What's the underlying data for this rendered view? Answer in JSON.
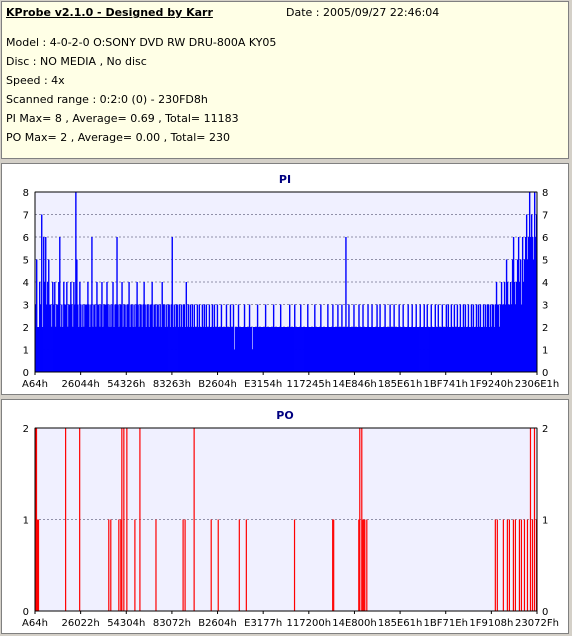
{
  "header": {
    "title": "KProbe v2.1.0 - Designed by Karr",
    "date": "Date : 2005/09/27 22:46:04",
    "lines": [
      "Model : 4-0-2-0 O:SONY    DVD RW DRU-800A  KY05",
      "Disc : NO MEDIA , No disc",
      "Speed : 4x",
      "Scanned range : 0:2:0 (0) - 230FD8h",
      "PI Max= 8 , Average= 0.69 , Total= 11183",
      "PO Max= 2 , Average= 0.00 , Total= 230"
    ]
  },
  "chart_data": [
    {
      "type": "bar",
      "title": "PI",
      "ylim": [
        0,
        8
      ],
      "yticks": [
        0,
        1,
        2,
        3,
        4,
        5,
        6,
        7,
        8
      ],
      "xtick_labels": [
        "A64h",
        "26044h",
        "54326h",
        "83263h",
        "B2604h",
        "E3154h",
        "117245h",
        "14E846h",
        "185E61h",
        "1BF741h",
        "1F9240h",
        "2306E1h"
      ],
      "color": "#0000ff",
      "x_range": [
        0,
        500
      ],
      "values": [
        3,
        5,
        2,
        2,
        4,
        3,
        7,
        2,
        6,
        4,
        6,
        3,
        4,
        5,
        3,
        3,
        2,
        4,
        3,
        4,
        2,
        3,
        3,
        4,
        6,
        2,
        3,
        2,
        4,
        3,
        3,
        4,
        2,
        3,
        3,
        4,
        3,
        2,
        4,
        3,
        8,
        5,
        3,
        2,
        4,
        3,
        2,
        3,
        2,
        3,
        3,
        3,
        4,
        3,
        2,
        3,
        6,
        2,
        3,
        3,
        2,
        4,
        3,
        3,
        2,
        3,
        4,
        2,
        3,
        3,
        3,
        4,
        3,
        2,
        3,
        2,
        3,
        4,
        2,
        3,
        3,
        6,
        3,
        2,
        3,
        3,
        4,
        2,
        3,
        3,
        2,
        3,
        3,
        4,
        2,
        3,
        3,
        2,
        3,
        2,
        3,
        4,
        3,
        2,
        3,
        3,
        2,
        3,
        4,
        3,
        2,
        3,
        3,
        2,
        3,
        3,
        4,
        2,
        3,
        3,
        2,
        3,
        3,
        2,
        3,
        2,
        4,
        3,
        3,
        2,
        3,
        2,
        3,
        3,
        2,
        3,
        6,
        2,
        3,
        2,
        3,
        3,
        2,
        3,
        2,
        3,
        2,
        3,
        3,
        2,
        4,
        2,
        3,
        2,
        3,
        2,
        3,
        2,
        3,
        2,
        2,
        3,
        2,
        3,
        2,
        2,
        3,
        2,
        3,
        2,
        3,
        2,
        2,
        3,
        2,
        2,
        3,
        2,
        3,
        2,
        2,
        3,
        2,
        2,
        2,
        3,
        2,
        2,
        2,
        2,
        3,
        2,
        2,
        2,
        3,
        2,
        2,
        3,
        1,
        2,
        2,
        2,
        3,
        2,
        2,
        2,
        2,
        2,
        3,
        2,
        2,
        2,
        2,
        3,
        2,
        2,
        1,
        2,
        2,
        2,
        2,
        3,
        2,
        2,
        2,
        2,
        2,
        2,
        2,
        3,
        2,
        2,
        2,
        2,
        2,
        2,
        2,
        3,
        2,
        2,
        2,
        2,
        2,
        2,
        3,
        2,
        2,
        2,
        2,
        2,
        2,
        2,
        2,
        3,
        2,
        2,
        2,
        2,
        3,
        2,
        2,
        2,
        2,
        2,
        3,
        2,
        2,
        2,
        2,
        2,
        2,
        3,
        2,
        2,
        2,
        2,
        2,
        2,
        3,
        2,
        2,
        2,
        2,
        2,
        3,
        2,
        2,
        2,
        2,
        2,
        2,
        3,
        2,
        2,
        2,
        2,
        3,
        2,
        2,
        2,
        2,
        3,
        2,
        2,
        2,
        3,
        2,
        2,
        2,
        6,
        2,
        2,
        3,
        2,
        2,
        2,
        2,
        3,
        2,
        2,
        2,
        2,
        3,
        2,
        2,
        2,
        3,
        2,
        2,
        2,
        2,
        3,
        2,
        2,
        2,
        3,
        2,
        2,
        2,
        2,
        3,
        2,
        2,
        3,
        2,
        2,
        2,
        2,
        3,
        2,
        2,
        2,
        2,
        3,
        2,
        2,
        2,
        3,
        2,
        2,
        2,
        2,
        3,
        2,
        2,
        2,
        3,
        2,
        2,
        2,
        2,
        3,
        2,
        2,
        2,
        3,
        2,
        2,
        2,
        3,
        2,
        2,
        2,
        3,
        2,
        2,
        2,
        3,
        2,
        2,
        3,
        2,
        2,
        2,
        3,
        2,
        2,
        2,
        3,
        2,
        2,
        3,
        2,
        2,
        2,
        3,
        2,
        2,
        2,
        3,
        2,
        3,
        2,
        2,
        3,
        2,
        2,
        3,
        2,
        2,
        3,
        2,
        2,
        3,
        2,
        2,
        3,
        2,
        3,
        2,
        2,
        3,
        2,
        2,
        3,
        2,
        3,
        2,
        2,
        3,
        2,
        3,
        2,
        3,
        2,
        2,
        3,
        2,
        3,
        2,
        3,
        3,
        2,
        3,
        2,
        3,
        3,
        2,
        3,
        4,
        3,
        3,
        2,
        3,
        4,
        3,
        3,
        4,
        3,
        5,
        4,
        3,
        3,
        4,
        3,
        5,
        6,
        4,
        3,
        4,
        5,
        6,
        4,
        5,
        3,
        6,
        4,
        5,
        6,
        7,
        5,
        6,
        8,
        6,
        7,
        6,
        5,
        8,
        6,
        7
      ]
    },
    {
      "type": "bar",
      "title": "PO",
      "ylim": [
        0,
        2
      ],
      "yticks": [
        0,
        1,
        2
      ],
      "xtick_labels": [
        "A64h",
        "26022h",
        "54304h",
        "83072h",
        "B2604h",
        "E3177h",
        "117200h",
        "14E800h",
        "185E61h",
        "1BF71Eh",
        "1F9108h",
        "23072Fh"
      ],
      "color": "#ff0000",
      "x_range": [
        0,
        500
      ],
      "events": [
        {
          "x": 0,
          "v": 2
        },
        {
          "x": 1,
          "v": 2
        },
        {
          "x": 2,
          "v": 1
        },
        {
          "x": 3,
          "v": 1
        },
        {
          "x": 30,
          "v": 2
        },
        {
          "x": 44,
          "v": 2
        },
        {
          "x": 73,
          "v": 1
        },
        {
          "x": 75,
          "v": 1
        },
        {
          "x": 83,
          "v": 1
        },
        {
          "x": 85,
          "v": 1
        },
        {
          "x": 86,
          "v": 2
        },
        {
          "x": 88,
          "v": 2
        },
        {
          "x": 91,
          "v": 2
        },
        {
          "x": 99,
          "v": 1
        },
        {
          "x": 104,
          "v": 2
        },
        {
          "x": 120,
          "v": 1
        },
        {
          "x": 147,
          "v": 1
        },
        {
          "x": 149,
          "v": 1
        },
        {
          "x": 158,
          "v": 2
        },
        {
          "x": 175,
          "v": 1
        },
        {
          "x": 182,
          "v": 1
        },
        {
          "x": 203,
          "v": 1
        },
        {
          "x": 210,
          "v": 1
        },
        {
          "x": 258,
          "v": 1
        },
        {
          "x": 296,
          "v": 1
        },
        {
          "x": 297,
          "v": 1
        },
        {
          "x": 322,
          "v": 1
        },
        {
          "x": 323,
          "v": 2
        },
        {
          "x": 325,
          "v": 2
        },
        {
          "x": 326,
          "v": 1
        },
        {
          "x": 327,
          "v": 1
        },
        {
          "x": 328,
          "v": 1
        },
        {
          "x": 330,
          "v": 1
        },
        {
          "x": 458,
          "v": 1
        },
        {
          "x": 460,
          "v": 1
        },
        {
          "x": 466,
          "v": 1
        },
        {
          "x": 470,
          "v": 1
        },
        {
          "x": 472,
          "v": 1
        },
        {
          "x": 476,
          "v": 1
        },
        {
          "x": 478,
          "v": 1
        },
        {
          "x": 482,
          "v": 1
        },
        {
          "x": 484,
          "v": 1
        },
        {
          "x": 487,
          "v": 1
        },
        {
          "x": 490,
          "v": 1
        },
        {
          "x": 493,
          "v": 2
        },
        {
          "x": 495,
          "v": 1
        },
        {
          "x": 497,
          "v": 2
        },
        {
          "x": 499,
          "v": 1
        }
      ]
    }
  ]
}
